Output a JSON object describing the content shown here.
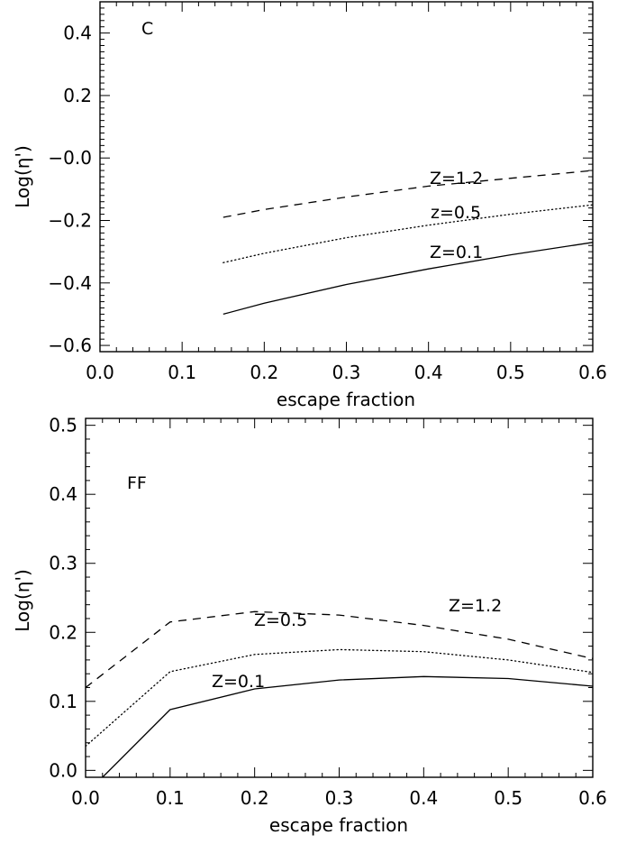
{
  "chart_data": [
    {
      "type": "line",
      "panel_label": "C",
      "xlabel": "escape fraction",
      "ylabel": "Log(η')",
      "xlim": [
        0.0,
        0.6
      ],
      "ylim": [
        -0.62,
        0.5
      ],
      "xticks": [
        0.0,
        0.1,
        0.2,
        0.3,
        0.4,
        0.5,
        0.6
      ],
      "xtick_labels": [
        "0.0",
        "0.1",
        "0.2",
        "0.3",
        "0.4",
        "0.5",
        "0.6"
      ],
      "yticks": [
        -0.6,
        -0.4,
        -0.2,
        0.0,
        0.2,
        0.4
      ],
      "ytick_labels": [
        "−0.6",
        "−0.4",
        "−0.2",
        "−0.0",
        "0.2",
        "0.4"
      ],
      "grid": false,
      "series": [
        {
          "name": "Z=1.2",
          "style": "dashed",
          "x": [
            0.15,
            0.2,
            0.3,
            0.4,
            0.5,
            0.6
          ],
          "y": [
            -0.19,
            -0.165,
            -0.125,
            -0.09,
            -0.065,
            -0.04
          ]
        },
        {
          "name": "z=0.5",
          "style": "dotted",
          "x": [
            0.15,
            0.2,
            0.3,
            0.4,
            0.5,
            0.6
          ],
          "y": [
            -0.335,
            -0.305,
            -0.255,
            -0.215,
            -0.18,
            -0.15
          ]
        },
        {
          "name": "Z=0.1",
          "style": "solid",
          "x": [
            0.15,
            0.2,
            0.3,
            0.4,
            0.5,
            0.6
          ],
          "y": [
            -0.5,
            -0.465,
            -0.405,
            -0.355,
            -0.31,
            -0.27
          ]
        }
      ]
    },
    {
      "type": "line",
      "panel_label": "FF",
      "xlabel": "escape fraction",
      "ylabel": "Log(η')",
      "xlim": [
        0.0,
        0.6
      ],
      "ylim": [
        -0.01,
        0.51
      ],
      "xticks": [
        0.0,
        0.1,
        0.2,
        0.3,
        0.4,
        0.5,
        0.6
      ],
      "xtick_labels": [
        "0.0",
        "0.1",
        "0.2",
        "0.3",
        "0.4",
        "0.5",
        "0.6"
      ],
      "yticks": [
        0.0,
        0.1,
        0.2,
        0.3,
        0.4,
        0.5
      ],
      "ytick_labels": [
        "0.0",
        "0.1",
        "0.2",
        "0.3",
        "0.4",
        "0.5"
      ],
      "grid": false,
      "series": [
        {
          "name": "Z=1.2",
          "style": "dashed",
          "x": [
            0.0,
            0.1,
            0.2,
            0.3,
            0.4,
            0.5,
            0.6
          ],
          "y": [
            0.12,
            0.215,
            0.23,
            0.225,
            0.21,
            0.19,
            0.162
          ]
        },
        {
          "name": "Z=0.5",
          "style": "dotted",
          "x": [
            0.0,
            0.1,
            0.2,
            0.3,
            0.4,
            0.5,
            0.6
          ],
          "y": [
            0.035,
            0.143,
            0.168,
            0.175,
            0.172,
            0.16,
            0.142
          ]
        },
        {
          "name": "Z=0.1",
          "style": "solid",
          "x": [
            0.02,
            0.1,
            0.2,
            0.3,
            0.4,
            0.5,
            0.6
          ],
          "y": [
            -0.01,
            0.088,
            0.118,
            0.131,
            0.136,
            0.133,
            0.122
          ]
        }
      ]
    }
  ]
}
